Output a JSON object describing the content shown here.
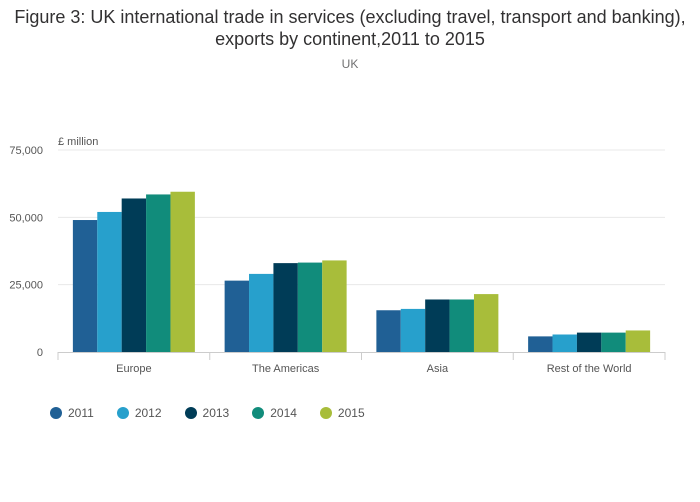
{
  "header": {
    "title": "Figure 3: UK international trade in services (excluding travel, transport and banking), exports by continent,2011 to 2015",
    "subtitle": "UK"
  },
  "chart_data": {
    "type": "bar",
    "title": "Figure 3: UK international trade in services (excluding travel, transport and banking), exports by continent,2011 to 2015",
    "subtitle": "UK",
    "ylabel": "£ million",
    "xlabel": "",
    "ylim": [
      0,
      75000
    ],
    "yticks": [
      0,
      25000,
      50000,
      75000
    ],
    "ytick_labels": [
      "0",
      "25,000",
      "50,000",
      "75,000"
    ],
    "grid": true,
    "legend_position": "bottom",
    "categories": [
      "Europe",
      "The Americas",
      "Asia",
      "Rest of the World"
    ],
    "series": [
      {
        "name": "2011",
        "color": "#206095",
        "values": [
          49000,
          26500,
          15500,
          5800
        ]
      },
      {
        "name": "2012",
        "color": "#27a0cc",
        "values": [
          52000,
          29000,
          16000,
          6500
        ]
      },
      {
        "name": "2013",
        "color": "#003c57",
        "values": [
          57000,
          33000,
          19500,
          7200
        ]
      },
      {
        "name": "2014",
        "color": "#118c7b",
        "values": [
          58500,
          33200,
          19500,
          7200
        ]
      },
      {
        "name": "2015",
        "color": "#a8bd3a",
        "values": [
          59500,
          34000,
          21500,
          8000
        ]
      }
    ]
  }
}
